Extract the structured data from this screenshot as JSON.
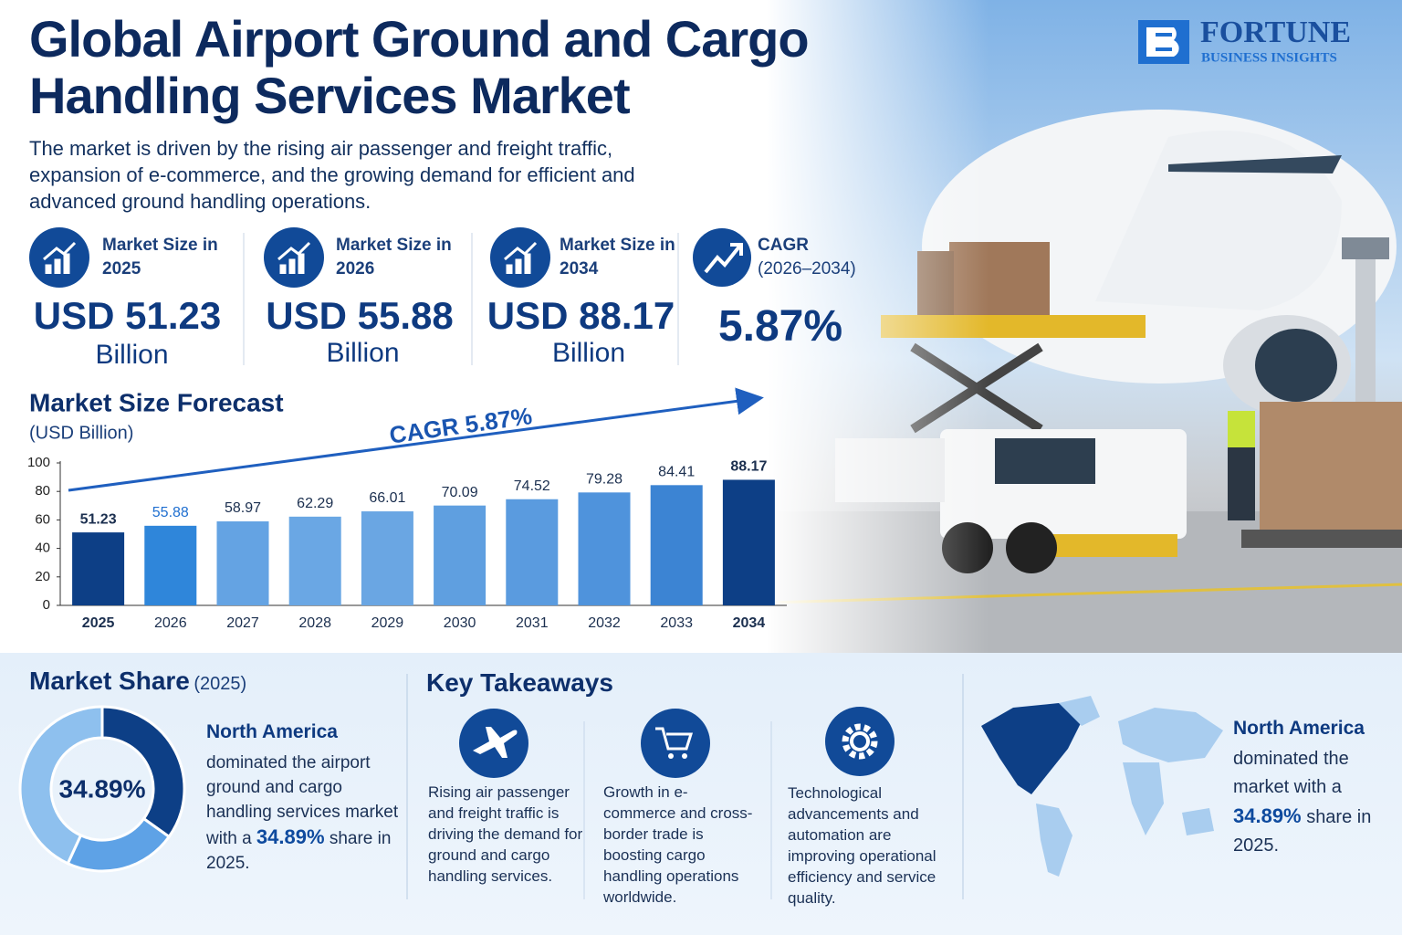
{
  "header": {
    "title": "Global Airport Ground and Cargo Handling Services Market",
    "intro": "The market is driven by the rising air passenger and freight traffic, expansion of e-commerce, and the growing demand for efficient and advanced ground handling operations.",
    "logo_name": "FORTUNE",
    "logo_tagline": "BUSINESS INSIGHTS"
  },
  "stats": [
    {
      "label": "Market Size in 2025",
      "value": "USD 51.23",
      "unit": "Billion"
    },
    {
      "label": "Market Size in 2026",
      "value": "USD 55.88",
      "unit": "Billion"
    },
    {
      "label": "Market Size in 2034",
      "value": "USD 88.17",
      "unit": "Billion"
    },
    {
      "label": "CAGR",
      "sublabel": "(2026–2034)",
      "value": "5.87%"
    }
  ],
  "chart_data": [
    {
      "type": "bar",
      "title": "Market Size Forecast",
      "subtitle": "(USD Billion)",
      "annotation": "CAGR 5.87%",
      "categories": [
        "2025",
        "2026",
        "2027",
        "2028",
        "2029",
        "2030",
        "2031",
        "2032",
        "2033",
        "2034"
      ],
      "values": [
        51.23,
        55.88,
        58.97,
        62.29,
        66.01,
        70.09,
        74.52,
        79.28,
        84.41,
        88.17
      ],
      "colors": [
        "#0d3f86",
        "#2f86da",
        "#64a3e3",
        "#6aa7e4",
        "#6aa6e3",
        "#5f9fe0",
        "#5a9bdf",
        "#4f93dc",
        "#3c84d3",
        "#0d3f86"
      ],
      "ylim": [
        0,
        100
      ],
      "yticks": [
        0,
        20,
        40,
        60,
        80,
        100
      ],
      "grid": false
    },
    {
      "type": "pie",
      "title": "Market Share",
      "subtitle": "(2025)",
      "categories": [
        "North America",
        null,
        null
      ],
      "values": [
        34.89,
        22,
        43.11
      ],
      "value_labels": [
        "34.89%",
        null,
        null
      ],
      "colors": [
        "#0d3f86",
        "#5ea2e6",
        "#8ec0ee"
      ]
    }
  ],
  "market_share": {
    "region": "North America",
    "text": "dominated the airport ground and cargo handling services market with a",
    "highlight": "34.89%",
    "text_end": "share in 2025."
  },
  "takeaways": {
    "title": "Key Takeaways",
    "items": [
      "Rising air passenger and freight traffic is driving the demand for ground and cargo handling services.",
      "Growth in e-commerce and cross-border trade is boosting cargo handling operations worldwide.",
      "Technological advancements and automation are improving operational efficiency and service quality."
    ]
  },
  "map_panel": {
    "region": "North America",
    "text": "dominated the market with a",
    "highlight": "34.89%",
    "text_end": "share in 2025."
  }
}
